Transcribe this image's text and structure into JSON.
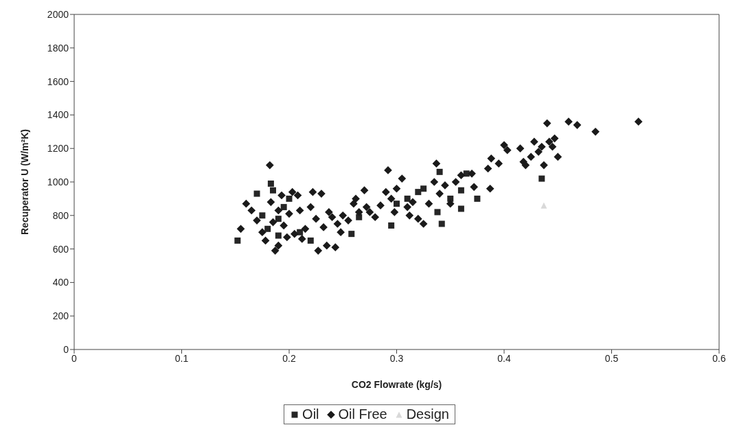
{
  "chart_data": {
    "type": "scatter",
    "xlabel": "CO2 Flowrate (kg/s)",
    "ylabel": "Recuperator U (W/m²K)",
    "xlim": [
      0,
      0.6
    ],
    "xticks": [
      0,
      0.1,
      0.2,
      0.3,
      0.4,
      0.5,
      0.6
    ],
    "ylim": [
      0,
      2000
    ],
    "yticks": [
      0,
      200,
      400,
      600,
      800,
      1000,
      1200,
      1400,
      1600,
      1800,
      2000
    ],
    "grid": false,
    "legend": "bottom",
    "series": [
      {
        "name": "Oil",
        "color": "#262626",
        "marker": "square",
        "x": [
          0.152,
          0.17,
          0.175,
          0.18,
          0.183,
          0.185,
          0.19,
          0.19,
          0.195,
          0.2,
          0.21,
          0.22,
          0.258,
          0.265,
          0.295,
          0.3,
          0.31,
          0.32,
          0.325,
          0.338,
          0.34,
          0.342,
          0.35,
          0.36,
          0.36,
          0.365,
          0.375,
          0.435
        ],
        "values": [
          650,
          930,
          800,
          720,
          990,
          950,
          680,
          780,
          850,
          900,
          700,
          650,
          690,
          790,
          740,
          870,
          900,
          940,
          960,
          820,
          1060,
          750,
          900,
          950,
          840,
          1050,
          900,
          1020
        ]
      },
      {
        "name": "Oil Free",
        "color": "#1a1a1a",
        "marker": "diamond",
        "x": [
          0.155,
          0.16,
          0.165,
          0.17,
          0.175,
          0.178,
          0.182,
          0.183,
          0.185,
          0.187,
          0.19,
          0.19,
          0.193,
          0.195,
          0.198,
          0.2,
          0.203,
          0.205,
          0.208,
          0.21,
          0.212,
          0.215,
          0.22,
          0.222,
          0.225,
          0.227,
          0.23,
          0.232,
          0.235,
          0.237,
          0.24,
          0.243,
          0.245,
          0.248,
          0.25,
          0.255,
          0.26,
          0.262,
          0.265,
          0.27,
          0.272,
          0.275,
          0.28,
          0.285,
          0.29,
          0.292,
          0.295,
          0.298,
          0.3,
          0.305,
          0.31,
          0.312,
          0.315,
          0.32,
          0.325,
          0.33,
          0.335,
          0.337,
          0.34,
          0.345,
          0.35,
          0.355,
          0.36,
          0.37,
          0.372,
          0.385,
          0.387,
          0.388,
          0.395,
          0.4,
          0.403,
          0.415,
          0.418,
          0.42,
          0.425,
          0.428,
          0.432,
          0.435,
          0.437,
          0.44,
          0.442,
          0.445,
          0.447,
          0.45,
          0.46,
          0.468,
          0.485,
          0.525
        ],
        "values": [
          720,
          870,
          830,
          770,
          700,
          650,
          1100,
          880,
          760,
          590,
          620,
          830,
          920,
          740,
          670,
          810,
          940,
          690,
          920,
          830,
          660,
          720,
          850,
          940,
          780,
          590,
          930,
          730,
          620,
          820,
          790,
          610,
          750,
          700,
          800,
          770,
          870,
          900,
          820,
          950,
          850,
          820,
          790,
          860,
          940,
          1070,
          900,
          820,
          960,
          1020,
          850,
          800,
          880,
          780,
          750,
          870,
          1000,
          1110,
          930,
          980,
          870,
          1000,
          1040,
          1050,
          970,
          1080,
          960,
          1140,
          1110,
          1220,
          1190,
          1200,
          1120,
          1100,
          1150,
          1240,
          1180,
          1210,
          1100,
          1350,
          1240,
          1210,
          1260,
          1150,
          1360,
          1340,
          1300,
          1360
        ]
      },
      {
        "name": "Design",
        "color": "#d9d9d9",
        "marker": "triangle",
        "x": [
          0.437
        ],
        "values": [
          860
        ]
      }
    ]
  }
}
